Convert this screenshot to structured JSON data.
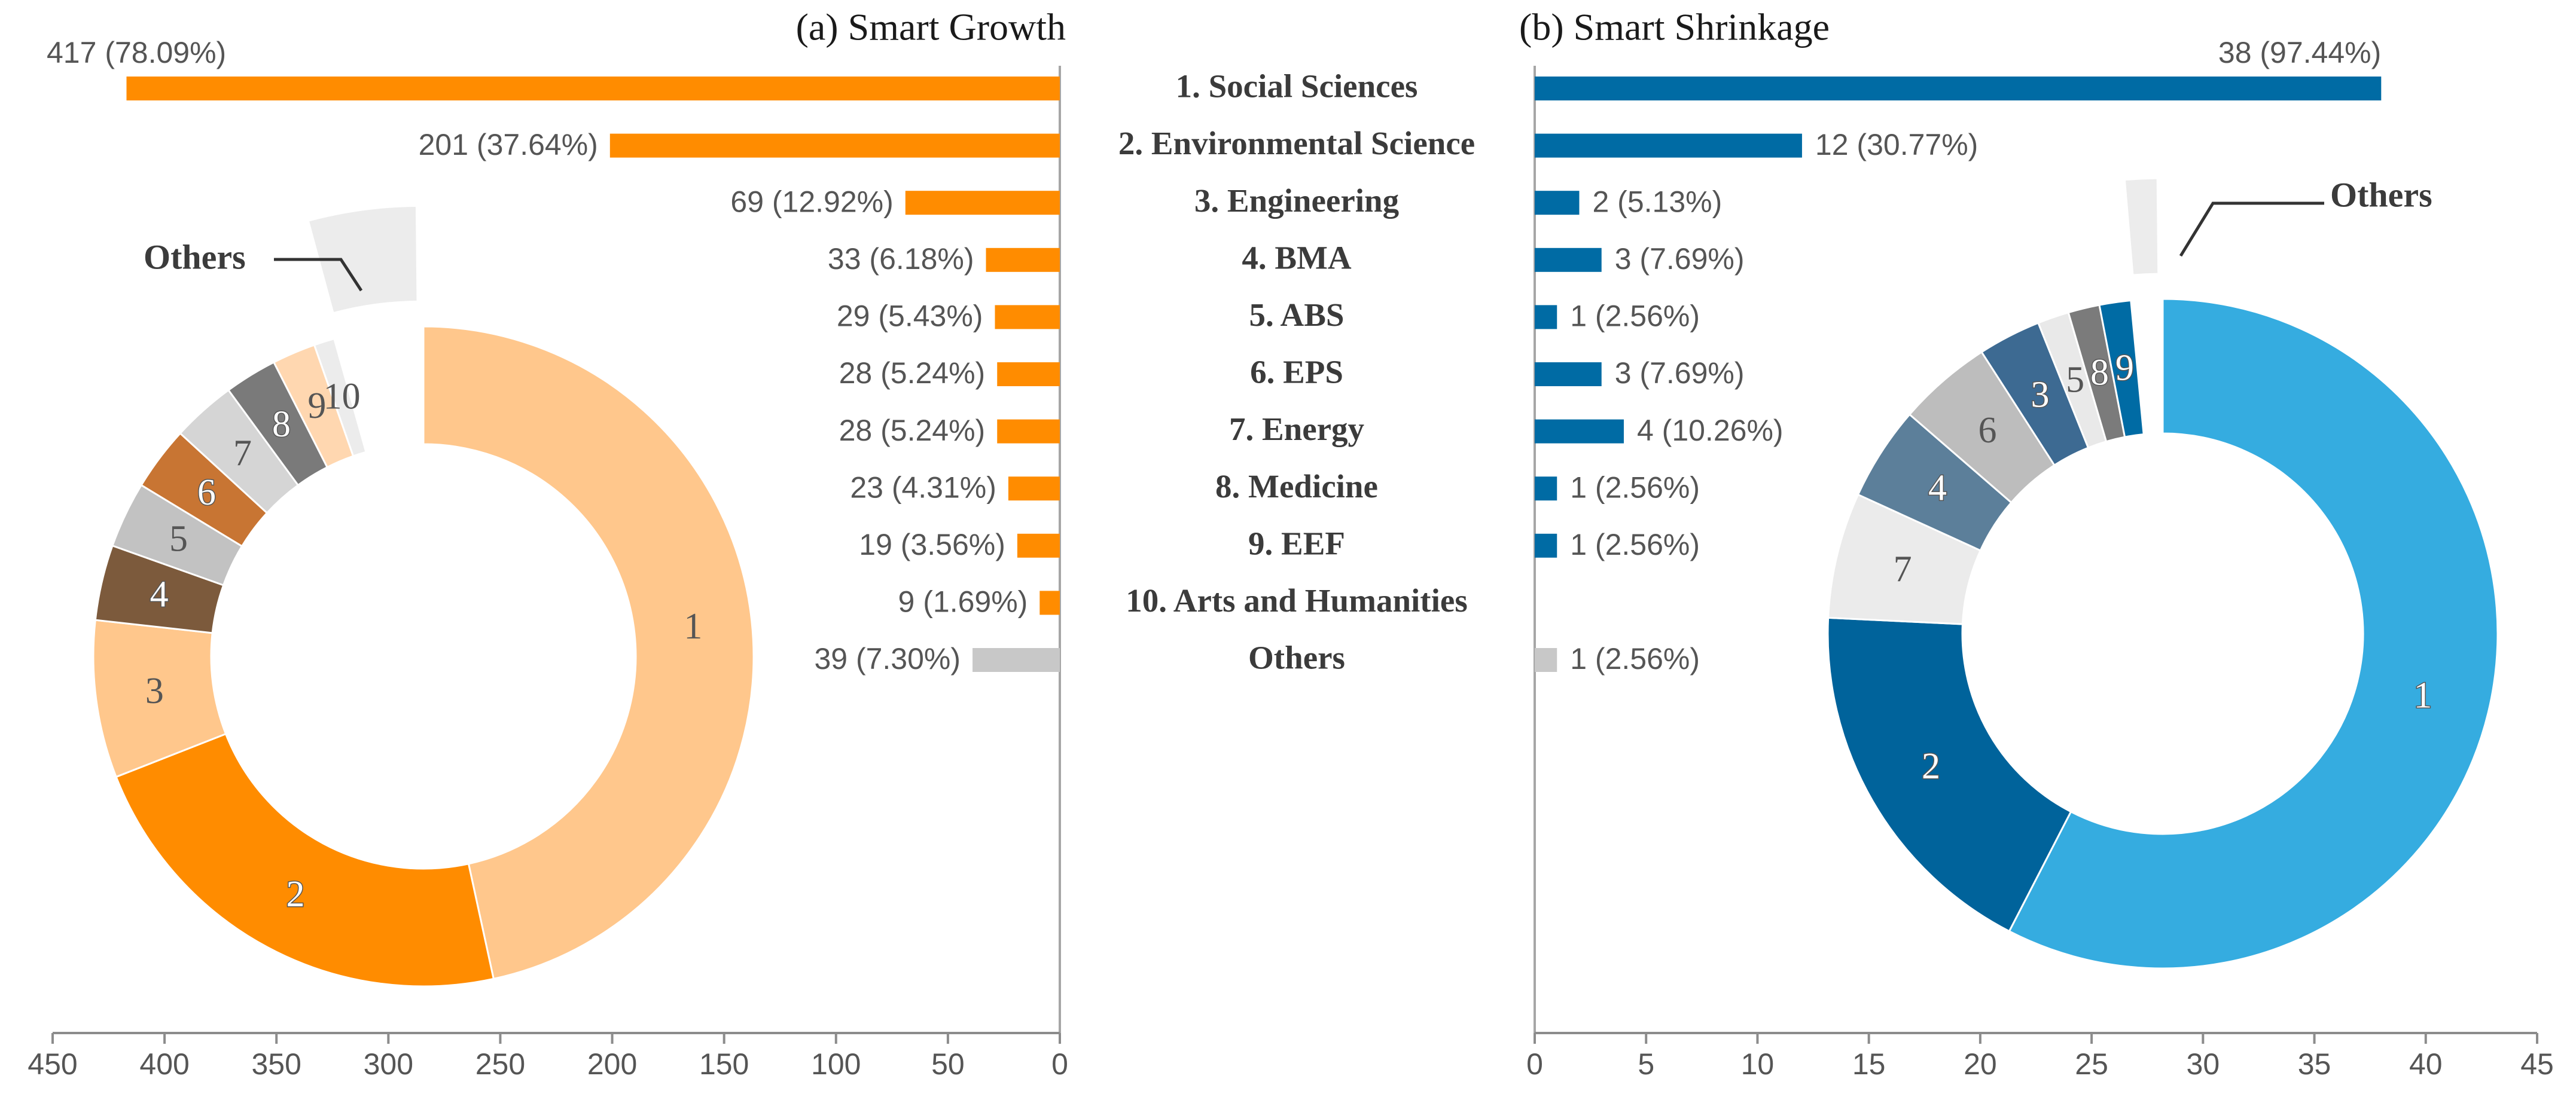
{
  "chart_data": [
    {
      "type": "bar",
      "panel": "left",
      "title": "(a) Smart Growth",
      "orientation": "horizontal",
      "direction": "right-to-left",
      "categories": [
        "1. Social Sciences",
        "2. Environmental Science",
        "3. Engineering",
        "4. BMA",
        "5. ABS",
        "6. EPS",
        "7. Energy",
        "8. Medicine",
        "9. EEF",
        "10. Arts and Humanities",
        "Others"
      ],
      "values": [
        417,
        201,
        69,
        33,
        29,
        28,
        28,
        23,
        19,
        9,
        39
      ],
      "value_labels": [
        "417 (78.09%)",
        "201 (37.64%)",
        "69 (12.92%)",
        "33 (6.18%)",
        "29 (5.43%)",
        "28 (5.24%)",
        "28 (5.24%)",
        "23 (4.31%)",
        "19 (3.56%)",
        "9 (1.69%)",
        "39 (7.30%)"
      ],
      "bar_colors": [
        "#ff8c00",
        "#ff8c00",
        "#ff8c00",
        "#ff8c00",
        "#ff8c00",
        "#ff8c00",
        "#ff8c00",
        "#ff8c00",
        "#ff8c00",
        "#ff8c00",
        "#c8c8c8"
      ],
      "xlim": [
        0,
        450
      ],
      "xticks": [
        450,
        400,
        350,
        300,
        250,
        200,
        150,
        100,
        50,
        0
      ],
      "donut": {
        "type": "pie",
        "labels": [
          "1",
          "2",
          "3",
          "4",
          "5",
          "6",
          "7",
          "8",
          "9",
          "10"
        ],
        "values": [
          417,
          201,
          69,
          33,
          29,
          28,
          28,
          23,
          19,
          9
        ],
        "colors": [
          "#ffc78c",
          "#ff8c00",
          "#ffc78c",
          "#7c5a3c",
          "#c2c2c2",
          "#c87533",
          "#d5d5d5",
          "#7a7a7a",
          "#ffd7b0",
          "#ececec"
        ],
        "others": {
          "label": "Others",
          "value": 39,
          "color": "#ececec"
        }
      }
    },
    {
      "type": "bar",
      "panel": "right",
      "title": "(b) Smart Shrinkage",
      "orientation": "horizontal",
      "direction": "left-to-right",
      "categories": [
        "1. Social Sciences",
        "2. Environmental Science",
        "3. Engineering",
        "4. BMA",
        "5. ABS",
        "6. EPS",
        "7. Energy",
        "8. Medicine",
        "9. EEF",
        "10. Arts and Humanities",
        "Others"
      ],
      "values": [
        38,
        12,
        2,
        3,
        1,
        3,
        4,
        1,
        1,
        0,
        1
      ],
      "value_labels": [
        "38 (97.44%)",
        "12 (30.77%)",
        "2 (5.13%)",
        "3 (7.69%)",
        "1 (2.56%)",
        "3 (7.69%)",
        "4 (10.26%)",
        "1 (2.56%)",
        "1 (2.56%)",
        "",
        "1 (2.56%)"
      ],
      "bar_colors": [
        "#006ba4",
        "#006ba4",
        "#006ba4",
        "#006ba4",
        "#006ba4",
        "#006ba4",
        "#006ba4",
        "#006ba4",
        "#006ba4",
        "#006ba4",
        "#c8c8c8"
      ],
      "xlim": [
        0,
        45
      ],
      "xticks": [
        0,
        5,
        10,
        15,
        20,
        25,
        30,
        35,
        40,
        45
      ],
      "donut": {
        "type": "pie",
        "labels": [
          "1",
          "2",
          "7",
          "4",
          "6",
          "3",
          "5",
          "8",
          "9"
        ],
        "values": [
          38,
          12,
          4,
          3,
          3,
          2,
          1,
          1,
          1
        ],
        "colors": [
          "#35ace0",
          "#00639b",
          "#ebebeb",
          "#5c7f9a",
          "#bdbdbd",
          "#3d6a92",
          "#e9e9e9",
          "#7b7b7b",
          "#006ba4"
        ],
        "others": {
          "label": "Others",
          "value": 1,
          "color": "#ececec"
        }
      }
    }
  ]
}
